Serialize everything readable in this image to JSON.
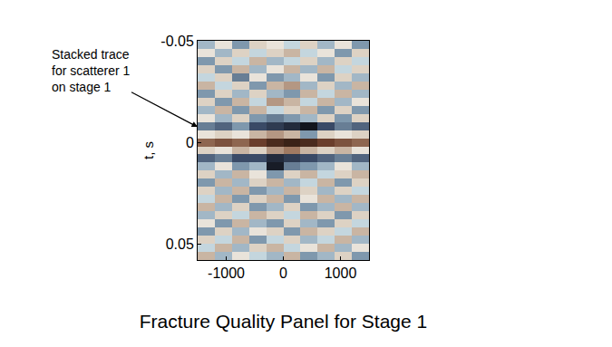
{
  "chart_data": {
    "type": "heatmap",
    "title": "Fracture Quality Panel for Stage 1",
    "y_label": "t, s",
    "annotation": "Stacked trace for scatterer 1 on stage 1",
    "x": [
      -1350,
      -1050,
      -750,
      -450,
      -150,
      150,
      450,
      750,
      1050,
      1350
    ],
    "y": [
      -0.048,
      -0.044,
      -0.04,
      -0.036,
      -0.032,
      -0.028,
      -0.024,
      -0.02,
      -0.016,
      -0.012,
      -0.008,
      -0.004,
      0,
      0.004,
      0.008,
      0.012,
      0.016,
      0.02,
      0.024,
      0.028,
      0.032,
      0.036,
      0.04,
      0.044,
      0.048,
      0.052,
      0.056
    ],
    "z": [
      [
        -0.2,
        0.1,
        -0.3,
        0.2,
        0.1,
        -0.1,
        0.2,
        -0.2,
        0.1,
        -0.3
      ],
      [
        0.1,
        -0.2,
        0.2,
        -0.1,
        0.2,
        0.3,
        -0.1,
        0.1,
        -0.3,
        0.2
      ],
      [
        -0.3,
        0.2,
        -0.1,
        0.3,
        -0.2,
        -0.1,
        0.2,
        -0.2,
        0.2,
        -0.1
      ],
      [
        0.2,
        -0.3,
        0.3,
        -0.2,
        0.1,
        0.3,
        -0.2,
        0.3,
        -0.1,
        0.2
      ],
      [
        -0.1,
        0.2,
        -0.4,
        0.1,
        -0.3,
        -0.2,
        0.1,
        -0.3,
        0.2,
        -0.2
      ],
      [
        0.3,
        -0.1,
        0.2,
        -0.3,
        0.3,
        0.4,
        -0.2,
        0.2,
        -0.2,
        0.3
      ],
      [
        -0.3,
        0.2,
        -0.2,
        0.2,
        -0.2,
        -0.3,
        0.3,
        -0.1,
        0.3,
        -0.2
      ],
      [
        0.2,
        -0.3,
        0.3,
        -0.1,
        0.4,
        0.3,
        -0.1,
        0.3,
        -0.2,
        0.1
      ],
      [
        -0.2,
        0.3,
        -0.3,
        0.3,
        -0.1,
        0.2,
        0.3,
        -0.3,
        0.2,
        -0.3
      ],
      [
        0.1,
        -0.2,
        0.2,
        -0.3,
        -0.4,
        -0.3,
        -0.2,
        0.2,
        -0.3,
        0.2
      ],
      [
        -0.4,
        -0.5,
        -0.3,
        -0.6,
        -0.7,
        -0.8,
        -0.95,
        -0.6,
        -0.4,
        -0.5
      ],
      [
        0.1,
        0.2,
        0.1,
        0.3,
        0.4,
        0.3,
        -0.3,
        0.2,
        0.1,
        0.2
      ],
      [
        0.6,
        0.7,
        0.6,
        0.8,
        0.9,
        0.95,
        0.9,
        0.8,
        0.7,
        0.6
      ],
      [
        0.2,
        0.1,
        0.3,
        0.2,
        0.4,
        0.5,
        0.3,
        0.2,
        0.3,
        0.1
      ],
      [
        -0.5,
        -0.4,
        -0.6,
        -0.6,
        -0.8,
        -0.7,
        -0.6,
        -0.5,
        -0.4,
        -0.5
      ],
      [
        -0.2,
        0.1,
        -0.3,
        -0.2,
        -0.9,
        -0.4,
        -0.3,
        -0.2,
        0.1,
        -0.2
      ],
      [
        0.2,
        -0.2,
        0.3,
        0.1,
        -0.3,
        0.2,
        0.3,
        -0.1,
        0.2,
        0.3
      ],
      [
        -0.3,
        0.3,
        -0.2,
        0.2,
        0.3,
        -0.2,
        -0.1,
        0.3,
        -0.3,
        0.2
      ],
      [
        0.2,
        -0.2,
        0.3,
        -0.3,
        -0.2,
        0.3,
        0.2,
        -0.2,
        0.2,
        -0.1
      ],
      [
        -0.1,
        0.3,
        -0.3,
        0.2,
        0.3,
        -0.3,
        0.1,
        0.3,
        -0.2,
        0.3
      ],
      [
        0.3,
        -0.2,
        0.2,
        -0.3,
        -0.2,
        0.2,
        -0.3,
        -0.2,
        0.3,
        -0.2
      ],
      [
        -0.2,
        0.2,
        -0.1,
        0.3,
        0.2,
        -0.1,
        0.3,
        0.2,
        -0.3,
        0.2
      ],
      [
        0.1,
        -0.3,
        0.3,
        -0.2,
        -0.3,
        0.2,
        -0.2,
        -0.3,
        0.2,
        -0.1
      ],
      [
        -0.3,
        0.2,
        -0.2,
        0.1,
        0.2,
        -0.3,
        0.3,
        0.2,
        -0.1,
        0.3
      ],
      [
        0.2,
        -0.1,
        0.3,
        -0.3,
        -0.1,
        0.2,
        -0.2,
        -0.1,
        0.3,
        -0.2
      ],
      [
        -0.1,
        0.3,
        -0.2,
        0.2,
        0.3,
        -0.1,
        0.1,
        0.3,
        -0.2,
        0.1
      ],
      [
        0.3,
        -0.2,
        0.1,
        -0.1,
        -0.2,
        0.3,
        -0.3,
        -0.2,
        0.2,
        -0.3
      ]
    ],
    "zlim": [
      -1,
      1
    ],
    "xlim": [
      -1500,
      1500
    ],
    "ylim": [
      -0.05,
      0.058
    ],
    "xticks": [
      -1000,
      0,
      1000
    ],
    "yticks": [
      -0.05,
      0,
      0.05
    ]
  }
}
